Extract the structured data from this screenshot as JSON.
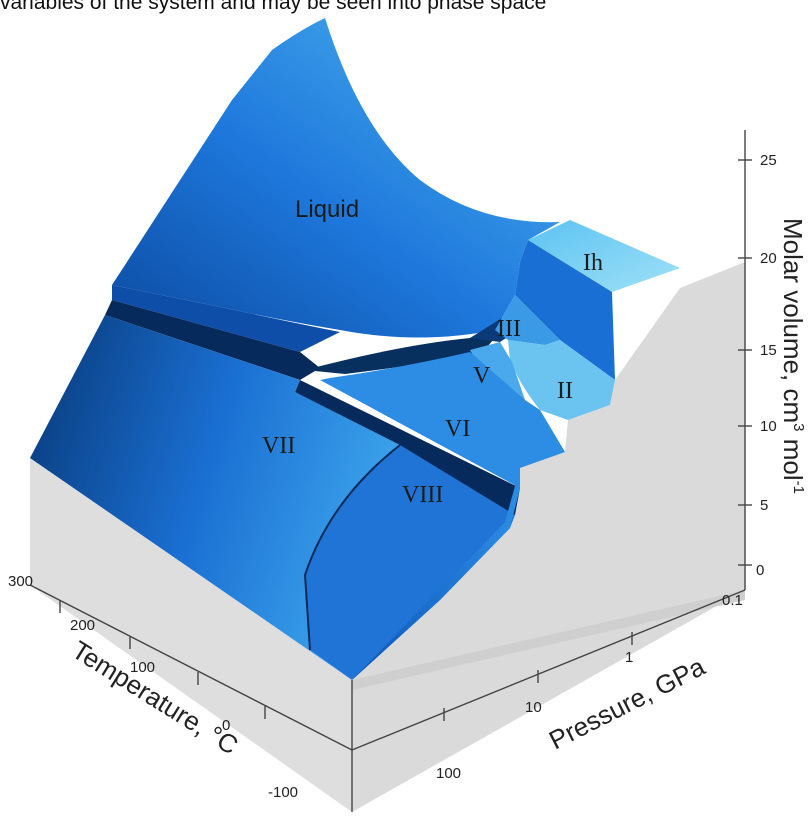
{
  "caption": "variables of the system and may be seen into phase space",
  "diagram": {
    "phases": [
      "Liquid",
      "Ih",
      "III",
      "II",
      "V",
      "VI",
      "VII",
      "VIII"
    ],
    "axes": {
      "volume": {
        "title_main": "Molar volume, cm",
        "title_sup": "3",
        "title_mid": " mol",
        "title_sup2": "-1",
        "ticks": [
          "25",
          "20",
          "15",
          "10",
          "5",
          "0"
        ]
      },
      "pressure": {
        "title": "Pressure, GPa",
        "ticks": [
          "0.1",
          "1",
          "10",
          "100"
        ]
      },
      "temperature": {
        "title": "Temperature, °C",
        "ticks": [
          "300",
          "200",
          "100",
          "0",
          "-100"
        ]
      }
    },
    "colors": {
      "surface_dark": "#0a3f8c",
      "surface_mid": "#1e7be0",
      "surface_light": "#7fd0f2",
      "wall": "#e0e0e0"
    }
  }
}
